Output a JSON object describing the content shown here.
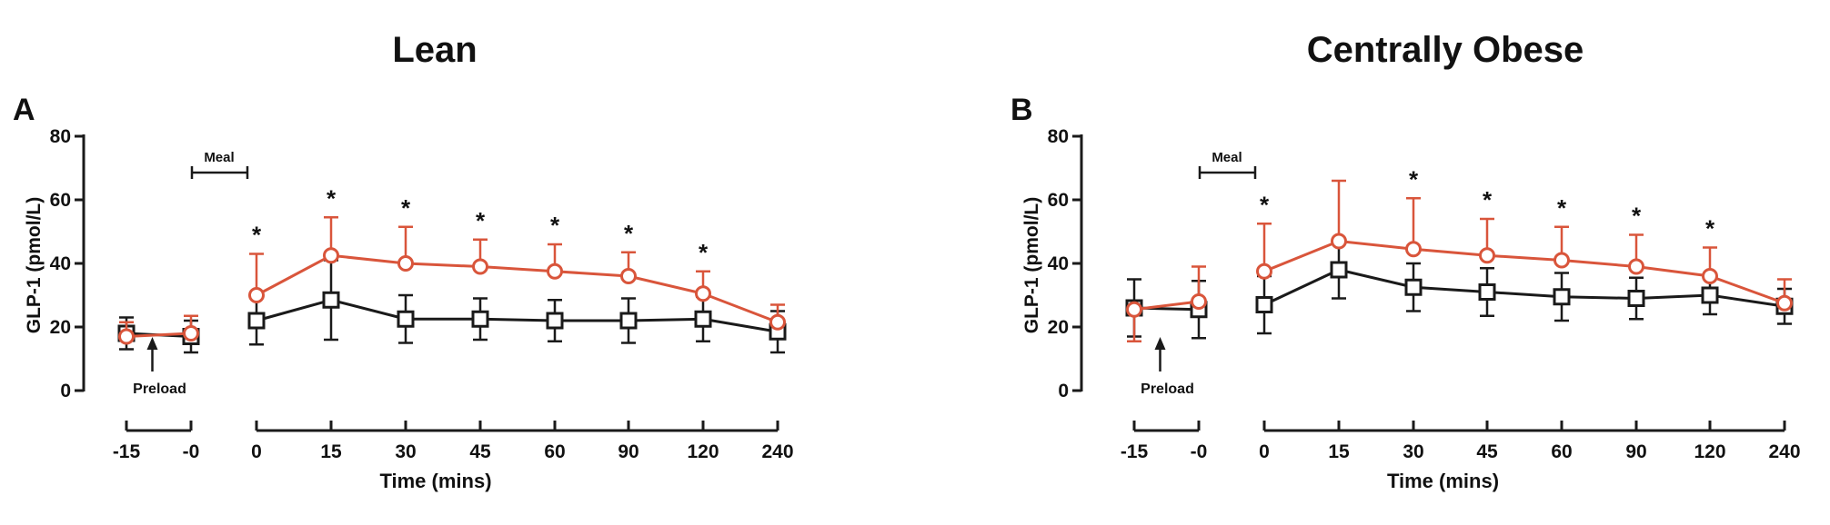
{
  "y_axis_label": "GLP-1 (pmol/L)",
  "x_axis_label": "Time (mins)",
  "meal_label": "Meal",
  "preload_label": "Preload",
  "chart_data": [
    {
      "panel": "A",
      "title": "Lean",
      "type": "line",
      "ylabel": "GLP-1 (pmol/L)",
      "xlabel": "Time (mins)",
      "ylim": [
        0,
        80
      ],
      "yticks": [
        0,
        20,
        40,
        60,
        80
      ],
      "categories": [
        "-15",
        "-0",
        "0",
        "15",
        "30",
        "45",
        "60",
        "90",
        "120",
        "240"
      ],
      "significance": [
        "",
        "",
        "*",
        "*",
        "*",
        "*",
        "*",
        "*",
        "*",
        ""
      ],
      "series": [
        {
          "color": "#d9553b",
          "marker": "circle",
          "values": [
            17,
            18,
            30,
            42.5,
            40,
            39,
            37.5,
            36,
            30.5,
            21.5
          ],
          "error_upper": [
            4.5,
            5.5,
            13,
            12,
            11.5,
            8.5,
            8.5,
            7.5,
            7,
            5.5
          ]
        },
        {
          "color": "#1a1a1a",
          "marker": "square",
          "values": [
            18,
            17,
            22,
            28.5,
            22.5,
            22.5,
            22,
            22,
            22.5,
            18.5
          ],
          "error_upper": [
            5,
            5,
            7.5,
            12.5,
            7.5,
            6.5,
            6.5,
            7,
            7,
            6.5
          ],
          "error_lower": [
            5,
            5,
            7.5,
            12.5,
            7.5,
            6.5,
            6.5,
            7,
            7,
            6.5
          ]
        }
      ]
    },
    {
      "panel": "B",
      "title": "Centrally Obese",
      "type": "line",
      "ylabel": "GLP-1 (pmol/L)",
      "xlabel": "Time (mins)",
      "ylim": [
        0,
        80
      ],
      "yticks": [
        0,
        20,
        40,
        60,
        80
      ],
      "categories": [
        "-15",
        "-0",
        "0",
        "15",
        "30",
        "45",
        "60",
        "90",
        "120",
        "240"
      ],
      "significance": [
        "",
        "",
        "*",
        "",
        "*",
        "*",
        "*",
        "*",
        "*",
        ""
      ],
      "series": [
        {
          "color": "#d9553b",
          "marker": "circle",
          "values": [
            25.5,
            28,
            37.5,
            47,
            44.5,
            42.5,
            41,
            39,
            36,
            27.5
          ],
          "error_upper": [
            0,
            11,
            15,
            19,
            16,
            11.5,
            10.5,
            10,
            9,
            7.5
          ],
          "error_lower": [
            10,
            0,
            0,
            0,
            0,
            0,
            0,
            0,
            0,
            0
          ]
        },
        {
          "color": "#1a1a1a",
          "marker": "square",
          "values": [
            26,
            25.5,
            27,
            38,
            32.5,
            31,
            29.5,
            29,
            30,
            26.5
          ],
          "error_upper": [
            9,
            9,
            9,
            9,
            7.5,
            7.5,
            7.5,
            6.5,
            6,
            5.5
          ],
          "error_lower": [
            9,
            9,
            9,
            9,
            7.5,
            7.5,
            7.5,
            6.5,
            6,
            5.5
          ]
        }
      ]
    }
  ]
}
